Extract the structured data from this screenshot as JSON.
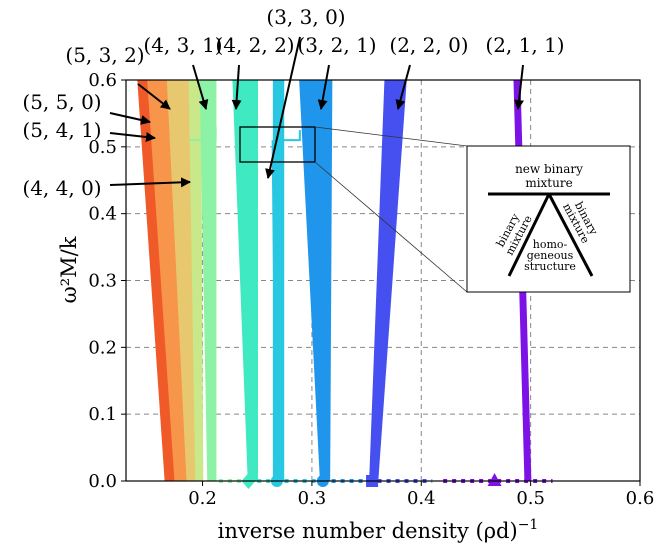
{
  "chart_data": {
    "type": "area",
    "xlabel": "inverse number density $(\\rho d)^{-1}$",
    "xlabel_text": "inverse number density (ρd)",
    "xlabel_sup": "−1",
    "ylabel_text": "ω²M/k",
    "xlim": [
      0.13,
      0.6
    ],
    "ylim": [
      0.0,
      0.6
    ],
    "grid": true,
    "x_ticks": [
      0.2,
      0.3,
      0.4,
      0.5,
      0.6
    ],
    "x_tick_labels": [
      "0.2",
      "0.3",
      "0.4",
      "0.5",
      "0.6"
    ],
    "y_ticks": [
      0.0,
      0.1,
      0.2,
      0.3,
      0.4,
      0.5,
      0.6
    ],
    "y_tick_labels": [
      "0.0",
      "0.1",
      "0.2",
      "0.3",
      "0.4",
      "0.5",
      "0.6"
    ],
    "series": [
      {
        "label": "(5, 5, 0)",
        "color": "#f05a28",
        "bottom": [
          0.166,
          0.175
        ],
        "top": [
          0.141,
          0.15
        ]
      },
      {
        "label": "(5, 4, 1)",
        "color": "#f7954a",
        "bottom": [
          0.175,
          0.187
        ],
        "top": [
          0.15,
          0.168
        ]
      },
      {
        "label": "(5, 3, 2)",
        "color": "#e7c86e",
        "bottom": [
          0.186,
          0.196
        ],
        "top": [
          0.168,
          0.19
        ]
      },
      {
        "label": "(4, 4, 0)",
        "color": "#c8e88a",
        "bottom": [
          0.194,
          0.2
        ],
        "top": [
          0.188,
          0.198
        ]
      },
      {
        "label": "(4, 3, 1)",
        "color": "#8cf2a6",
        "bottom": [
          0.205,
          0.212
        ],
        "top": [
          0.198,
          0.212
        ]
      },
      {
        "label": "(4, 2, 2)",
        "color": "#3fe9c2",
        "bottom": [
          0.242,
          0.25
        ],
        "top": [
          0.228,
          0.25
        ]
      },
      {
        "label": "(3, 3, 0)",
        "color": "#28c7e2",
        "bottom": [
          0.265,
          0.274
        ],
        "top": [
          0.265,
          0.274
        ]
      },
      {
        "label": "(3, 2, 1)",
        "color": "#1f96ec",
        "bottom": [
          0.308,
          0.316
        ],
        "top": [
          0.289,
          0.318
        ]
      },
      {
        "label": "(2, 2, 0)",
        "color": "#4650f0",
        "bottom": [
          0.353,
          0.36
        ],
        "top": [
          0.367,
          0.386
        ]
      },
      {
        "label": "(2, 1, 1)",
        "color": "#7d12e6",
        "bottom": [
          0.495,
          0.5
        ],
        "top": [
          0.485,
          0.49
        ]
      }
    ],
    "markers": [
      {
        "x": 0.242,
        "shape": "diamond",
        "color": "#3fe9c2"
      },
      {
        "x": 0.268,
        "shape": "circle",
        "color": "#28c7e2"
      },
      {
        "x": 0.31,
        "shape": "circle",
        "color": "#1f96ec"
      },
      {
        "x": 0.355,
        "shape": "square",
        "color": "#4650f0"
      },
      {
        "x": 0.467,
        "shape": "triangle",
        "color": "#7d12e6"
      }
    ],
    "dotted_segments": [
      {
        "x": [
          0.215,
          0.24
        ],
        "color": "#8cf2a6"
      },
      {
        "x": [
          0.25,
          0.265
        ],
        "color": "#3fe9c2"
      },
      {
        "x": [
          0.275,
          0.308
        ],
        "color": "#28c7e2"
      },
      {
        "x": [
          0.318,
          0.354
        ],
        "color": "#1f96ec"
      },
      {
        "x": [
          0.36,
          0.41
        ],
        "color": "#4650f0"
      },
      {
        "x": [
          0.42,
          0.52
        ],
        "color": "#7d12e6"
      }
    ],
    "inset": {
      "top_label_1": "new binary",
      "top_label_2": "mixture",
      "left_label_1": "binary",
      "left_label_2": "mixture",
      "right_label_1": "binary",
      "right_label_2": "mixture",
      "center_label_1": "homo-",
      "center_label_2": "geneous",
      "center_label_3": "structure"
    }
  }
}
